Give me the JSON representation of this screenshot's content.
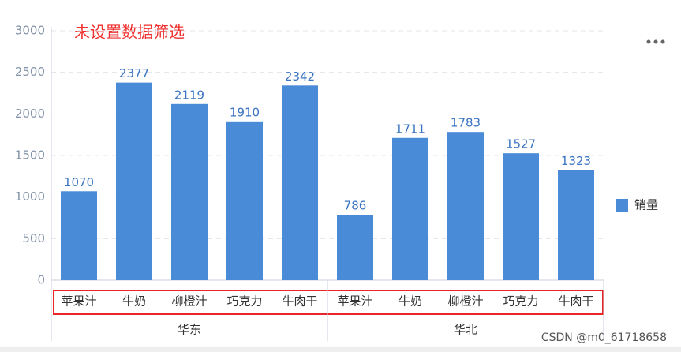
{
  "chart_data": {
    "type": "bar",
    "title": "未设置数据筛选",
    "categories": [
      "苹果汁",
      "牛奶",
      "柳橙汁",
      "巧克力",
      "牛肉干",
      "苹果汁",
      "牛奶",
      "柳橙汁",
      "巧克力",
      "牛肉干"
    ],
    "category_groups": [
      "华东",
      "华北"
    ],
    "series": [
      {
        "name": "销量",
        "color": "#4a8bd8",
        "values": [
          1070,
          2377,
          2119,
          1910,
          2342,
          786,
          1711,
          1783,
          1527,
          1323
        ]
      }
    ],
    "ylim": [
      0,
      3000
    ],
    "yticks": [
      0,
      500,
      1000,
      1500,
      2000,
      2500,
      3000
    ],
    "grid": true,
    "legend": "right",
    "watermark": "CSDN @m0_61718658"
  }
}
